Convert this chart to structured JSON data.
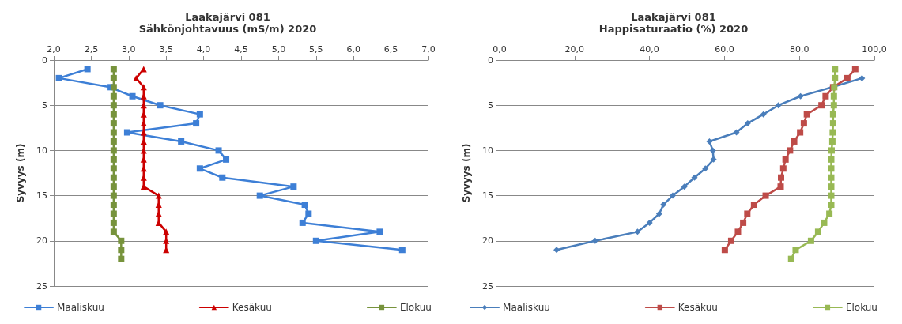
{
  "chart_data": [
    {
      "type": "line",
      "title": "Laakajärvi 081",
      "subtitle": "Sähkönjohtavuus (mS/m) 2020",
      "ylabel": "Syvyys (m)",
      "xlim": [
        2,
        7
      ],
      "xticks": [
        {
          "value": 2,
          "label": "2,0"
        },
        {
          "value": 2.5,
          "label": "2,5"
        },
        {
          "value": 3,
          "label": "3,0"
        },
        {
          "value": 3.5,
          "label": "3,5"
        },
        {
          "value": 4,
          "label": "4,0"
        },
        {
          "value": 4.5,
          "label": "4,5"
        },
        {
          "value": 5,
          "label": "5,0"
        },
        {
          "value": 5.5,
          "label": "5,5"
        },
        {
          "value": 6,
          "label": "6,0"
        },
        {
          "value": 6.5,
          "label": "6,5"
        },
        {
          "value": 7,
          "label": "7,0"
        }
      ],
      "ylim": [
        25,
        0
      ],
      "yticks": [
        0,
        5,
        10,
        15,
        20,
        25
      ],
      "grid": "y",
      "legend": "bottom",
      "line_style": "solid",
      "series": [
        {
          "name": "Maaliskuu",
          "color": "#3d7fd6",
          "marker": "square",
          "x": [
            2.45,
            2.07,
            2.75,
            3.05,
            3.42,
            3.95,
            3.9,
            2.98,
            3.7,
            4.2,
            4.3,
            3.95,
            4.25,
            5.2,
            4.75,
            5.35,
            5.4,
            5.32,
            6.35,
            5.5,
            6.65
          ],
          "values": [
            1,
            2,
            3,
            4,
            5,
            6,
            7,
            8,
            9,
            10,
            11,
            12,
            13,
            14,
            15,
            16,
            17,
            18,
            19,
            20,
            21
          ]
        },
        {
          "name": "Kesäkuu",
          "color": "#cc0000",
          "marker": "triangle",
          "x": [
            3.2,
            3.1,
            3.2,
            3.2,
            3.2,
            3.2,
            3.2,
            3.2,
            3.2,
            3.2,
            3.2,
            3.2,
            3.2,
            3.2,
            3.4,
            3.4,
            3.4,
            3.4,
            3.5,
            3.5,
            3.5
          ],
          "values": [
            1,
            2,
            3,
            4,
            5,
            6,
            7,
            8,
            9,
            10,
            11,
            12,
            13,
            14,
            15,
            16,
            17,
            18,
            19,
            20,
            21
          ]
        },
        {
          "name": "Elokuu",
          "color": "#77933c",
          "marker": "square",
          "x": [
            2.8,
            2.8,
            2.8,
            2.8,
            2.8,
            2.8,
            2.8,
            2.8,
            2.8,
            2.8,
            2.8,
            2.8,
            2.8,
            2.8,
            2.8,
            2.8,
            2.8,
            2.8,
            2.8,
            2.9,
            2.9,
            2.9
          ],
          "values": [
            1,
            2,
            3,
            4,
            5,
            6,
            7,
            8,
            9,
            10,
            11,
            12,
            13,
            14,
            15,
            16,
            17,
            18,
            19,
            20,
            21,
            22
          ]
        }
      ]
    },
    {
      "type": "line",
      "title": "Laakajärvi 081",
      "subtitle": "Happisaturaatio (%) 2020",
      "ylabel": "Syvyys (m)",
      "xlim": [
        0,
        100
      ],
      "xticks": [
        {
          "value": 0,
          "label": "0,0"
        },
        {
          "value": 20,
          "label": "20,0"
        },
        {
          "value": 40,
          "label": "40,0"
        },
        {
          "value": 60,
          "label": "60,0"
        },
        {
          "value": 80,
          "label": "80,0"
        },
        {
          "value": 100,
          "label": "100,0"
        }
      ],
      "ylim": [
        25,
        0
      ],
      "yticks": [
        0,
        5,
        10,
        15,
        20,
        25
      ],
      "grid": "y",
      "legend": "bottom",
      "line_style": "solid",
      "series": [
        {
          "name": "Maaliskuu",
          "color": "#4a7ebb",
          "marker": "diamond",
          "x": [
            96.7,
            88.8,
            80.3,
            74.4,
            70.4,
            66.2,
            63.2,
            56,
            56.9,
            57.1,
            54.9,
            52,
            49.3,
            46.2,
            43.7,
            42.6,
            40,
            36.8,
            25.5,
            15.2
          ],
          "values": [
            2,
            3,
            4,
            5,
            6,
            7,
            8,
            9,
            10,
            11,
            12,
            13,
            14,
            15,
            16,
            17,
            18,
            19,
            20,
            21
          ]
        },
        {
          "name": "Kesäkuu",
          "color": "#be4b48",
          "marker": "square",
          "x": [
            94.9,
            92.8,
            89,
            87,
            85.9,
            82,
            81.2,
            80.2,
            78.6,
            77.5,
            76.3,
            75.7,
            75.1,
            75,
            71,
            67.9,
            66.1,
            65,
            63.6,
            61.8,
            60.1
          ],
          "values": [
            1,
            2,
            3,
            4,
            5,
            6,
            7,
            8,
            9,
            10,
            11,
            12,
            13,
            14,
            15,
            16,
            17,
            18,
            19,
            20,
            21
          ]
        },
        {
          "name": "Elokuu",
          "color": "#98b954",
          "marker": "square",
          "x": [
            89.5,
            89.5,
            89.3,
            89.2,
            89.2,
            89,
            89,
            88.9,
            88.8,
            88.6,
            88.5,
            88.5,
            88.5,
            88.5,
            88.5,
            88.5,
            88,
            86.6,
            85,
            83.1,
            79,
            77.8
          ],
          "values": [
            1,
            2,
            3,
            4,
            5,
            6,
            7,
            8,
            9,
            10,
            11,
            12,
            13,
            14,
            15,
            16,
            17,
            18,
            19,
            20,
            21,
            22
          ]
        }
      ]
    }
  ]
}
